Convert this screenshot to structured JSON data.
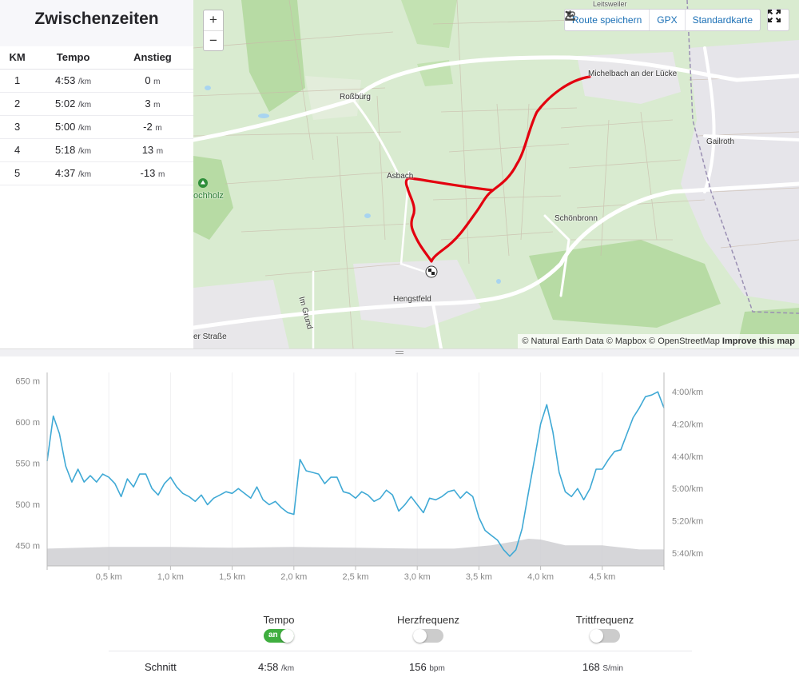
{
  "splits": {
    "title": "Zwischenzeiten",
    "headers": [
      "KM",
      "Tempo",
      "Anstieg"
    ],
    "pace_unit": "/km",
    "elev_unit": "m",
    "rows": [
      {
        "km": "1",
        "pace": "4:53",
        "elev": "0"
      },
      {
        "km": "2",
        "pace": "5:02",
        "elev": "3"
      },
      {
        "km": "3",
        "pace": "5:00",
        "elev": "-2"
      },
      {
        "km": "4",
        "pace": "5:18",
        "elev": "13"
      },
      {
        "km": "5",
        "pace": "4:37",
        "elev": "-13"
      }
    ]
  },
  "map": {
    "zoom_in": "+",
    "zoom_out": "−",
    "save_route": "Route speichern",
    "gpx": "GPX",
    "map_style": "Standardkarte",
    "attribution_text": "© Natural Earth Data © Mapbox © OpenStreetMap",
    "attribution_link": "Improve this map",
    "places": {
      "michelbach": "Michelbach an der Lücke",
      "rossburg": "Roßbürg",
      "gailroth": "Gailroth",
      "asbach": "Asbach",
      "schonbronn": "Schönbronn",
      "hengstfeld": "Hengstfeld",
      "hochholz": "ochholz",
      "im_grund": "Im Grund",
      "strasse": "er Straße",
      "top_right": "Leitsweiler"
    },
    "route_color": "#e3000f"
  },
  "chart_data": {
    "type": "line",
    "x_unit": "km",
    "x_ticks": [
      "0,5 km",
      "1,0 km",
      "1,5 km",
      "2,0 km",
      "2,5 km",
      "3,0 km",
      "3,5 km",
      "4,0 km",
      "4,5 km"
    ],
    "x_tick_values": [
      0.5,
      1.0,
      1.5,
      2.0,
      2.5,
      3.0,
      3.5,
      4.0,
      4.5
    ],
    "xlim": [
      0,
      5.0
    ],
    "left_axis": {
      "ticks": [
        "650 m",
        "600 m",
        "550 m",
        "500 m",
        "450 m"
      ],
      "values": [
        650,
        600,
        550,
        500,
        450
      ],
      "ylim": [
        425,
        660
      ]
    },
    "right_axis": {
      "ticks": [
        "4:00/km",
        "4:20/km",
        "4:40/km",
        "5:00/km",
        "5:20/km",
        "5:40/km"
      ],
      "values_sec": [
        240,
        260,
        280,
        300,
        320,
        340
      ],
      "ylim_sec": [
        348,
        228
      ]
    },
    "series": [
      {
        "name": "Tempo",
        "axis": "right",
        "color": "#3fa9d5",
        "x": [
          0,
          0.05,
          0.1,
          0.15,
          0.2,
          0.25,
          0.3,
          0.35,
          0.4,
          0.45,
          0.5,
          0.55,
          0.6,
          0.65,
          0.7,
          0.75,
          0.8,
          0.85,
          0.9,
          0.95,
          1.0,
          1.05,
          1.1,
          1.15,
          1.2,
          1.25,
          1.3,
          1.35,
          1.4,
          1.45,
          1.5,
          1.55,
          1.6,
          1.65,
          1.7,
          1.75,
          1.8,
          1.85,
          1.9,
          1.95,
          2.0,
          2.05,
          2.1,
          2.15,
          2.2,
          2.25,
          2.3,
          2.35,
          2.4,
          2.45,
          2.5,
          2.55,
          2.6,
          2.65,
          2.7,
          2.75,
          2.8,
          2.85,
          2.9,
          2.95,
          3.0,
          3.05,
          3.1,
          3.15,
          3.2,
          3.25,
          3.3,
          3.35,
          3.4,
          3.45,
          3.5,
          3.55,
          3.6,
          3.65,
          3.7,
          3.75,
          3.8,
          3.85,
          3.9,
          3.95,
          4.0,
          4.05,
          4.1,
          4.15,
          4.2,
          4.25,
          4.3,
          4.35,
          4.4,
          4.45,
          4.5,
          4.55,
          4.6,
          4.65,
          4.7,
          4.75,
          4.8,
          4.85,
          4.9,
          4.95,
          5.0
        ],
        "y": [
          283,
          255,
          266,
          286,
          296,
          288,
          296,
          292,
          296,
          291,
          293,
          297,
          305,
          294,
          299,
          291,
          291,
          300,
          304,
          297,
          293,
          299,
          303,
          305,
          308,
          304,
          310,
          306,
          304,
          302,
          303,
          300,
          303,
          306,
          299,
          307,
          310,
          308,
          312,
          315,
          316,
          282,
          289,
          290,
          291,
          297,
          293,
          293,
          302,
          303,
          306,
          302,
          304,
          308,
          306,
          301,
          304,
          314,
          310,
          305,
          310,
          315,
          306,
          307,
          305,
          302,
          301,
          306,
          302,
          305,
          318,
          326,
          329,
          332,
          338,
          342,
          338,
          325,
          303,
          282,
          260,
          248,
          265,
          290,
          302,
          305,
          300,
          307,
          300,
          288,
          288,
          282,
          277,
          276,
          266,
          256,
          250,
          243,
          242,
          240,
          250
        ]
      },
      {
        "name": "Höhe",
        "axis": "left",
        "color": "#cfcfd2",
        "x": [
          0,
          0.5,
          1.0,
          1.5,
          2.0,
          2.5,
          3.0,
          3.3,
          3.6,
          3.8,
          3.9,
          4.0,
          4.2,
          4.5,
          4.8,
          5.0
        ],
        "y": [
          446,
          448,
          448,
          447,
          448,
          447,
          446,
          446,
          450,
          455,
          458,
          457,
          450,
          450,
          445,
          445
        ]
      }
    ]
  },
  "metrics": {
    "items": [
      {
        "label": "Tempo",
        "on": true,
        "toggle_text": "an"
      },
      {
        "label": "Herzfrequenz",
        "on": false,
        "toggle_text": ""
      },
      {
        "label": "Trittfrequenz",
        "on": false,
        "toggle_text": ""
      }
    ],
    "avg_label": "Schnitt",
    "avg_pace": "4:58",
    "avg_pace_unit": "/km",
    "avg_hr": "156",
    "avg_hr_unit": "bpm",
    "avg_cad": "168",
    "avg_cad_unit": "S/min"
  }
}
